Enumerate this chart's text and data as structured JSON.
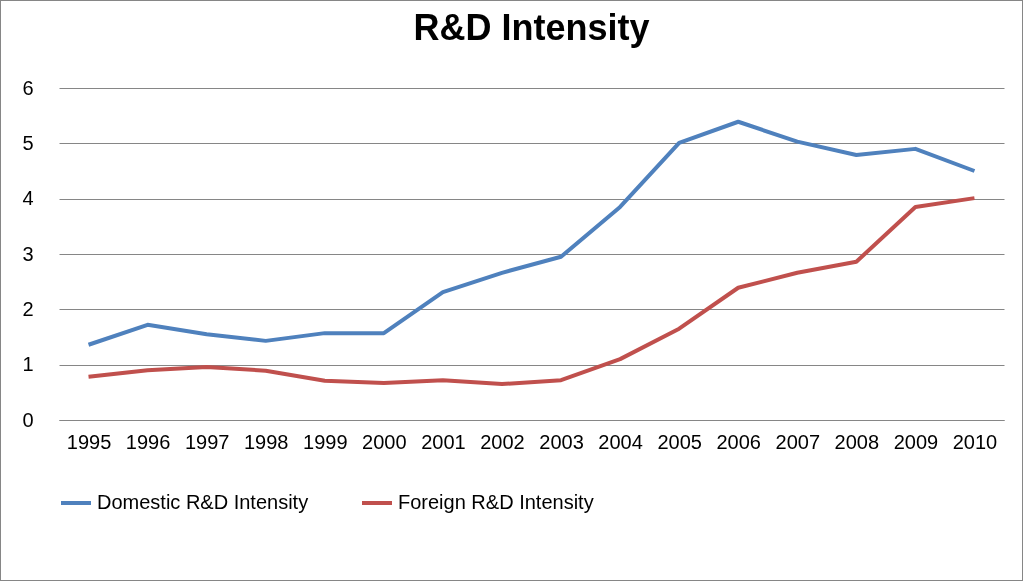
{
  "chart_data": {
    "type": "line",
    "title": "R&D Intensity",
    "categories": [
      "1995",
      "1996",
      "1997",
      "1998",
      "1999",
      "2000",
      "2001",
      "2002",
      "2003",
      "2004",
      "2005",
      "2006",
      "2007",
      "2008",
      "2009",
      "2010"
    ],
    "series": [
      {
        "name": "Domestic R&D Intensity",
        "color": "#4f81bd",
        "values": [
          1.36,
          1.72,
          1.55,
          1.43,
          1.57,
          1.57,
          2.31,
          2.66,
          2.95,
          3.85,
          5.01,
          5.39,
          5.03,
          4.79,
          4.9,
          4.5
        ]
      },
      {
        "name": "Foreign R&D Intensity",
        "color": "#c0504d",
        "values": [
          0.78,
          0.9,
          0.96,
          0.89,
          0.71,
          0.67,
          0.72,
          0.65,
          0.72,
          1.1,
          1.65,
          2.39,
          2.66,
          2.86,
          3.85,
          4.01
        ]
      }
    ],
    "ylim": [
      0,
      6
    ],
    "yticks": [
      0,
      1,
      2,
      3,
      4,
      5,
      6
    ],
    "grid": "y",
    "legend": "bottom",
    "marker": "none",
    "line_style": "solid"
  }
}
